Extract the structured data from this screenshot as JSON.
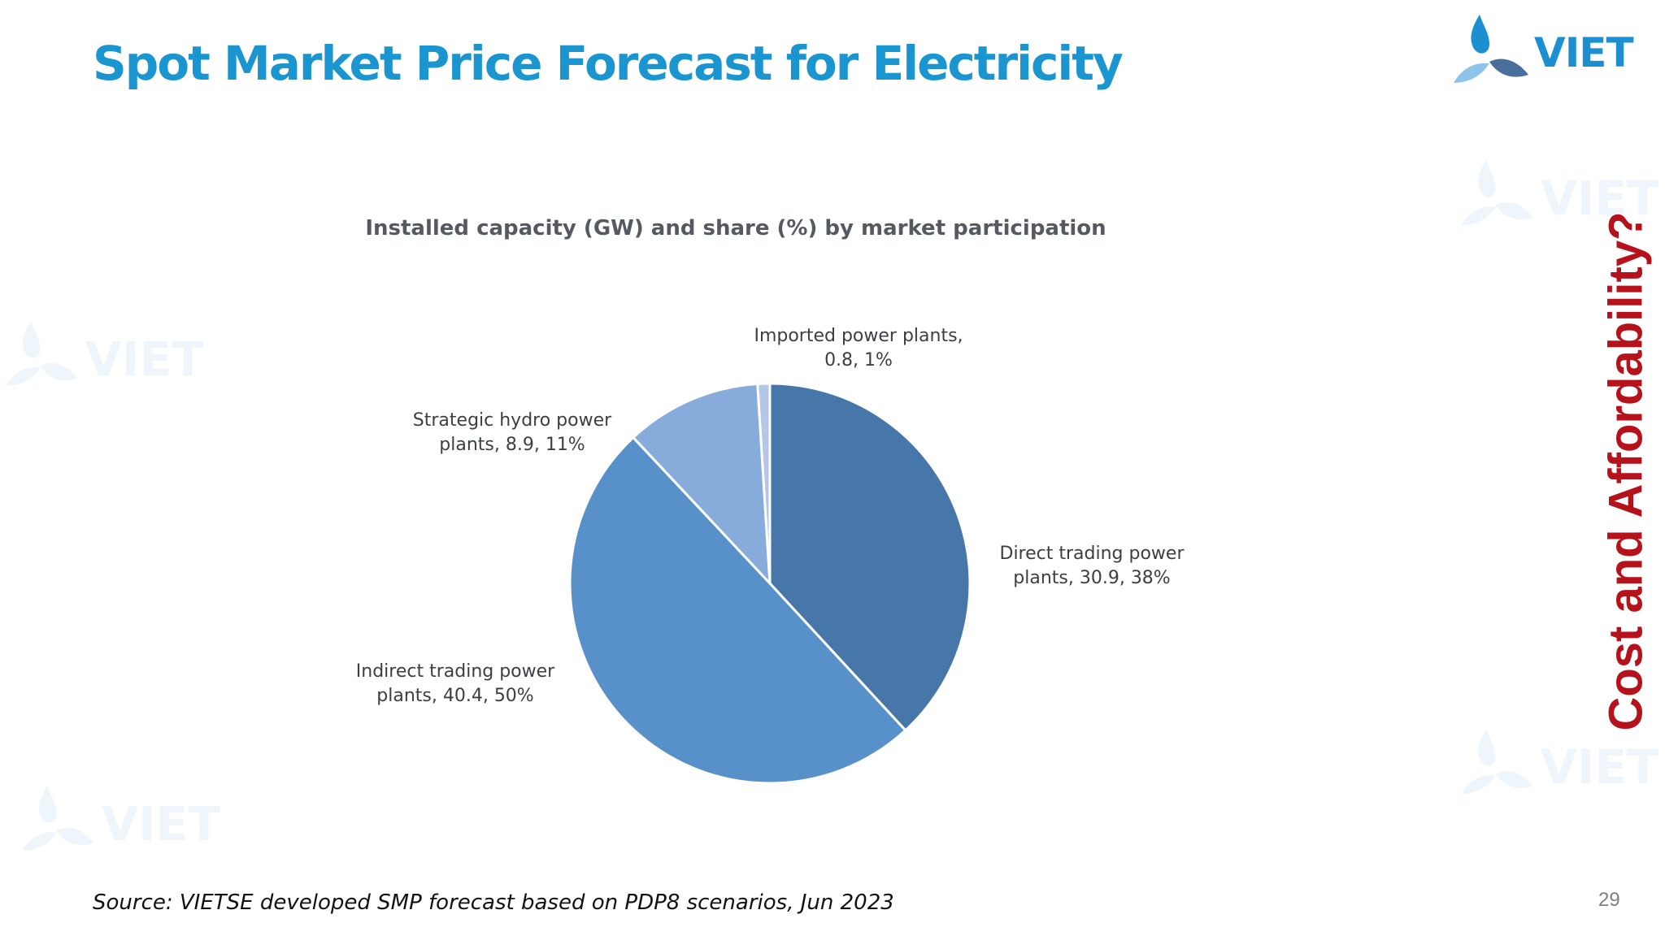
{
  "slide": {
    "title": "Spot Market Price Forecast for Electricity",
    "side_title": "Cost and Affordability?",
    "source": "Source: VIETSE developed SMP forecast based on PDP8 scenarios, Jun 2023",
    "page_number": "29"
  },
  "logo": {
    "text": "VIET"
  },
  "watermarks": {
    "text": "VIET"
  },
  "chart_data": {
    "type": "pie",
    "title": "Installed capacity (GW) and share (%) by market participation",
    "slices": [
      {
        "name": "Direct trading power plants",
        "value": 30.9,
        "percent": 38,
        "color": "#4776a8",
        "label_lines": [
          "Direct trading power",
          "plants, 30.9, 38%"
        ]
      },
      {
        "name": "Indirect trading power plants",
        "value": 40.4,
        "percent": 50,
        "color": "#5891c9",
        "label_lines": [
          "Indirect trading power",
          "plants, 40.4, 50%"
        ]
      },
      {
        "name": "Strategic hydro power plants",
        "value": 8.9,
        "percent": 11,
        "color": "#87acdc",
        "label_lines": [
          "Strategic hydro power",
          "plants, 8.9, 11%"
        ]
      },
      {
        "name": "Imported power plants",
        "value": 0.8,
        "percent": 1,
        "color": "#b4c8e6",
        "label_lines": [
          "Imported power plants,",
          "0.8, 1%"
        ]
      }
    ],
    "start_angle_deg": 0,
    "direction": "clockwise",
    "legend": "none (data labels)"
  },
  "colors": {
    "title": "#1b95cf",
    "side_title": "#b5121b",
    "logo_blue": "#1b8fd0"
  }
}
